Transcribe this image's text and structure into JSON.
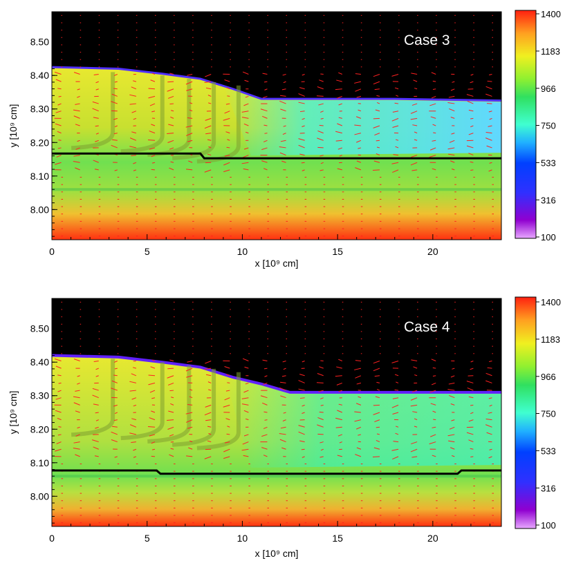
{
  "chart_data": [
    {
      "type": "heatmap",
      "annotation": "Case 3",
      "xlabel": "x [10⁹ cm]",
      "ylabel": "y [10⁹ cm]",
      "xlim": [
        0,
        23.6
      ],
      "ylim": [
        7.91,
        8.59
      ],
      "xticks": [
        0,
        5,
        10,
        15,
        20
      ],
      "xtick_labels": [
        "0",
        "5",
        "10",
        "15",
        "20"
      ],
      "yticks": [
        8.0,
        8.1,
        8.2,
        8.3,
        8.4,
        8.5
      ],
      "ytick_labels": [
        "8.00",
        "8.10",
        "8.20",
        "8.30",
        "8.40",
        "8.50"
      ],
      "surface_profile": [
        [
          0,
          8.425
        ],
        [
          3.5,
          8.42
        ],
        [
          5.8,
          8.405
        ],
        [
          7.8,
          8.39
        ],
        [
          9.5,
          8.36
        ],
        [
          11,
          8.33
        ],
        [
          14,
          8.33
        ],
        [
          18,
          8.33
        ],
        [
          23.6,
          8.325
        ]
      ],
      "interface_line": [
        [
          0,
          8.167
        ],
        [
          7.8,
          8.167
        ],
        [
          8,
          8.153
        ],
        [
          23.6,
          8.153
        ]
      ],
      "colorbar": {
        "min": 100,
        "max": 1400,
        "tick_values": [
          1400,
          1183,
          966,
          750,
          533,
          316,
          100
        ],
        "tick_labels": [
          "1400",
          "1183",
          "966",
          "750",
          "533",
          "316",
          "100"
        ]
      }
    },
    {
      "type": "heatmap",
      "annotation": "Case 4",
      "xlabel": "x [10⁹ cm]",
      "ylabel": "y [10⁹ cm]",
      "xlim": [
        0,
        23.6
      ],
      "ylim": [
        7.91,
        8.59
      ],
      "xticks": [
        0,
        5,
        10,
        15,
        20
      ],
      "xtick_labels": [
        "0",
        "5",
        "10",
        "15",
        "20"
      ],
      "yticks": [
        8.0,
        8.1,
        8.2,
        8.3,
        8.4,
        8.5
      ],
      "ytick_labels": [
        "8.00",
        "8.10",
        "8.20",
        "8.30",
        "8.40",
        "8.50"
      ],
      "surface_profile": [
        [
          0,
          8.42
        ],
        [
          3.5,
          8.415
        ],
        [
          5.8,
          8.4
        ],
        [
          7.8,
          8.385
        ],
        [
          9.5,
          8.355
        ],
        [
          11,
          8.335
        ],
        [
          12.5,
          8.31
        ],
        [
          18,
          8.31
        ],
        [
          23.6,
          8.31
        ]
      ],
      "interface_line": [
        [
          0,
          8.077
        ],
        [
          5.5,
          8.077
        ],
        [
          5.7,
          8.067
        ],
        [
          21.3,
          8.067
        ],
        [
          21.5,
          8.077
        ],
        [
          23.6,
          8.077
        ]
      ],
      "colorbar": {
        "min": 100,
        "max": 1400,
        "tick_values": [
          1400,
          1183,
          966,
          750,
          533,
          316,
          100
        ],
        "tick_labels": [
          "1400",
          "1183",
          "966",
          "750",
          "533",
          "316",
          "100"
        ]
      }
    }
  ]
}
